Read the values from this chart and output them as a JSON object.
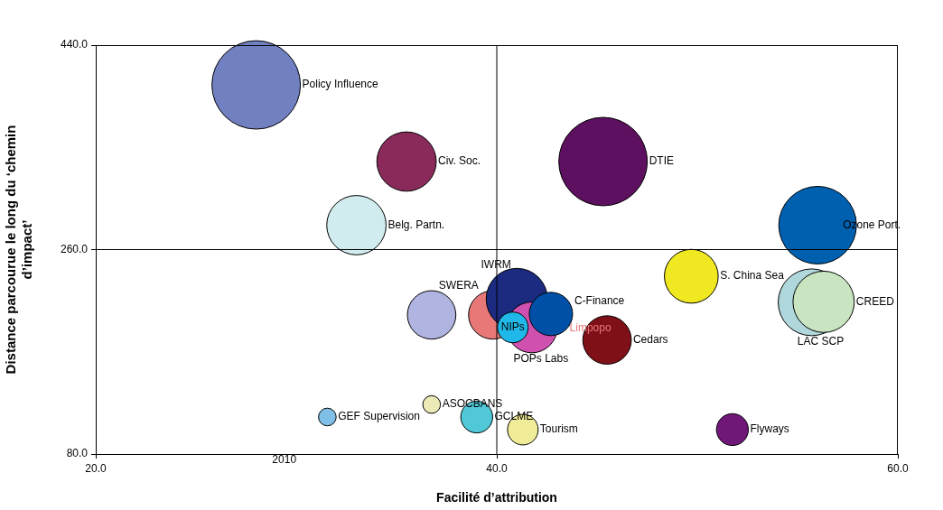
{
  "chart_data": {
    "type": "bubble",
    "xlabel": "Facilité d’attribution",
    "ylabel": "Distance parcourue le long du ‘chemin\nd’impact’",
    "annotations": [
      "2010"
    ],
    "xlim": [
      20,
      60
    ],
    "xticks": [
      {
        "value": 20,
        "label": "20.0"
      },
      {
        "value": 40,
        "label": "40.0"
      },
      {
        "value": 60,
        "label": "60.0"
      }
    ],
    "ylim": [
      80,
      440
    ],
    "yticks": [
      {
        "value": 80,
        "label": "80.0"
      },
      {
        "value": 260,
        "label": "260.0"
      },
      {
        "value": 440,
        "label": "440.0"
      }
    ],
    "grid": false,
    "legend": false,
    "ref_lines": [
      {
        "axis": "x",
        "value": 40,
        "color": "#000000"
      },
      {
        "axis": "y",
        "value": 260,
        "color": "#000000"
      }
    ],
    "series": [
      {
        "name": "Policy Influence",
        "color": "#7080c0",
        "x": [
          28.0
        ],
        "values": [
          405
        ],
        "sizes": [
          1
        ]
      },
      {
        "name": "Civ. Soc.",
        "color": "#8a2a5a",
        "x": [
          35.5
        ],
        "values": [
          337.5
        ],
        "sizes": [
          0.45
        ]
      },
      {
        "name": "Belg. Partn.",
        "color": "#d0ecee",
        "x": [
          33.0
        ],
        "values": [
          281.5
        ],
        "sizes": [
          0.45
        ]
      },
      {
        "name": "DTIE",
        "color": "#5e1060",
        "x": [
          45.3
        ],
        "values": [
          337.5
        ],
        "sizes": [
          1
        ]
      },
      {
        "name": "Ozone Port.",
        "color": "#0060b0",
        "x": [
          56.0
        ],
        "values": [
          281.5
        ],
        "sizes": [
          0.77
        ]
      },
      {
        "name": "S. China Sea",
        "color": "#f0e820",
        "x": [
          49.7
        ],
        "values": [
          236.5
        ],
        "sizes": [
          0.37
        ]
      },
      {
        "name": "LAC SCP",
        "color": "#b0d8dc",
        "x": [
          55.7
        ],
        "values": [
          213.6
        ],
        "sizes": [
          0.57
        ]
      },
      {
        "name": "CREED",
        "color": "#c8e4c0",
        "x": [
          56.3
        ],
        "values": [
          214
        ],
        "sizes": [
          0.48
        ]
      },
      {
        "name": "SWERA",
        "color": "#b0b4e0",
        "x": [
          36.75
        ],
        "values": [
          202.5
        ],
        "sizes": [
          0.3
        ]
      },
      {
        "name": "Limpopo",
        "color": "#e87878",
        "x": [
          39.8
        ],
        "values": [
          202.5
        ],
        "sizes": [
          0.3
        ]
      },
      {
        "name": "IWRM",
        "color": "#1c2a80",
        "x": [
          41.0
        ],
        "values": [
          216.5
        ],
        "sizes": [
          0.48
        ]
      },
      {
        "name": "POPs Labs",
        "color": "#d050b0",
        "x": [
          41.75
        ],
        "values": [
          191.5
        ],
        "sizes": [
          0.33
        ]
      },
      {
        "name": "C-Finance",
        "color": "#0050a8",
        "x": [
          42.7
        ],
        "values": [
          203.3
        ],
        "sizes": [
          0.24
        ]
      },
      {
        "name": "NIPs",
        "color": "#20b8e8",
        "x": [
          40.8
        ],
        "values": [
          191.5
        ],
        "sizes": [
          0.12
        ]
      },
      {
        "name": "Cedars",
        "color": "#801018",
        "x": [
          45.5
        ],
        "values": [
          180.4
        ],
        "sizes": [
          0.3
        ]
      },
      {
        "name": "ASOCBANS",
        "color": "#ecebb8",
        "x": [
          36.75
        ],
        "values": [
          123.6
        ],
        "sizes": [
          0.04
        ]
      },
      {
        "name": "GEF Supervision",
        "color": "#80c0e8",
        "x": [
          31.55
        ],
        "values": [
          112.6
        ],
        "sizes": [
          0.04
        ]
      },
      {
        "name": "GCLME",
        "color": "#50c8d8",
        "x": [
          39.0
        ],
        "values": [
          112.6
        ],
        "sizes": [
          0.13
        ]
      },
      {
        "name": "Tourism",
        "color": "#f0ec98",
        "x": [
          41.3
        ],
        "values": [
          101.5
        ],
        "sizes": [
          0.12
        ]
      },
      {
        "name": "Flyways",
        "color": "#701878",
        "x": [
          51.75
        ],
        "values": [
          101.5
        ],
        "sizes": [
          0.13
        ]
      }
    ]
  }
}
